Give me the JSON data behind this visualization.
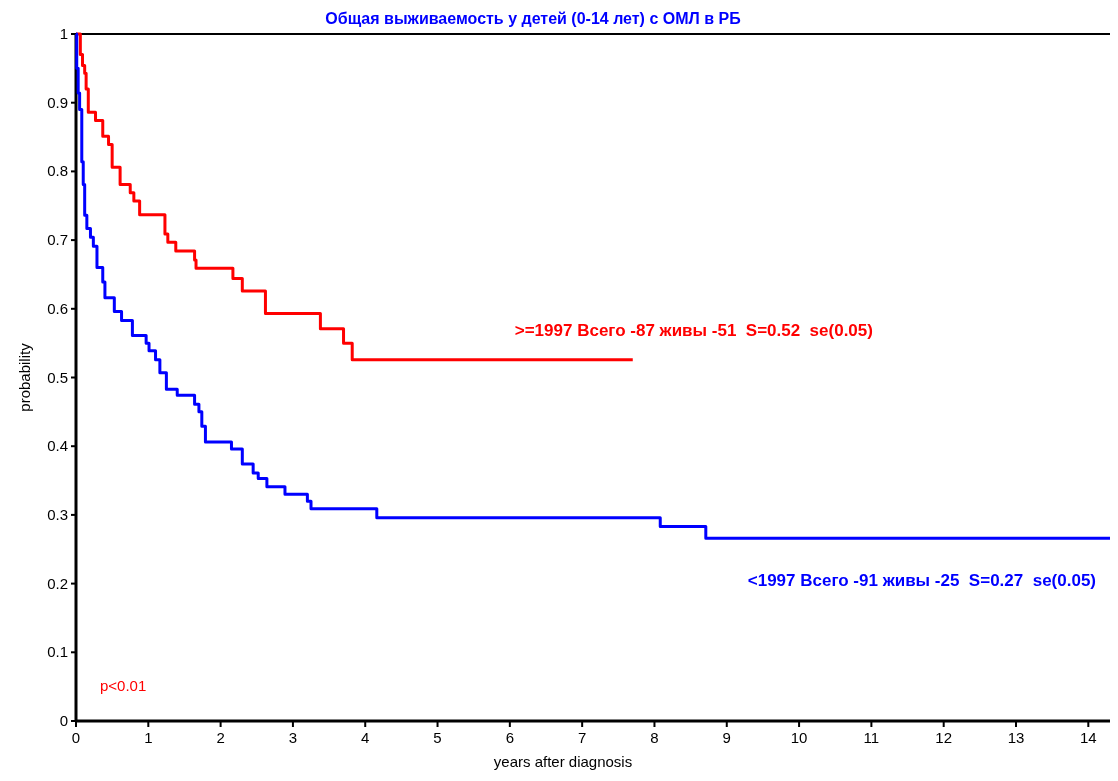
{
  "chart_data": {
    "type": "step",
    "title": "Общая выживаемость у детей (0-14 лет) с ОМЛ в РБ",
    "xlabel": "years after diagnosis",
    "ylabel": "probability",
    "xlim": [
      0,
      14.3
    ],
    "xticks": [
      0,
      1,
      2,
      3,
      4,
      5,
      6,
      7,
      8,
      9,
      10,
      11,
      12,
      13,
      14
    ],
    "ylim": [
      0,
      1
    ],
    "yticks": [
      0,
      0.1,
      0.2,
      0.3,
      0.4,
      0.5,
      0.6,
      0.7,
      0.8,
      0.9,
      1
    ],
    "grid": false,
    "line_style": "solid",
    "marker": "none",
    "annotations": [
      "p<0.01"
    ],
    "series": [
      {
        "name": ">=1997 Всего -87 живы -51  S=0.52  se(0.05)",
        "color": "#ff0000",
        "x": [
          0,
          0.06,
          0.09,
          0.12,
          0.14,
          0.17,
          0.27,
          0.37,
          0.45,
          0.5,
          0.61,
          0.75,
          0.8,
          0.88,
          1.23,
          1.27,
          1.38,
          1.64,
          1.66,
          2.17,
          2.3,
          2.62,
          3.38,
          3.7,
          3.82,
          7.7
        ],
        "values": [
          1,
          0.97,
          0.954,
          0.943,
          0.92,
          0.886,
          0.874,
          0.851,
          0.839,
          0.806,
          0.781,
          0.769,
          0.757,
          0.737,
          0.709,
          0.697,
          0.684,
          0.671,
          0.659,
          0.644,
          0.626,
          0.593,
          0.571,
          0.55,
          0.526,
          0.526
        ]
      },
      {
        "name": "<1997 Всего -91 живы -25  S=0.27  se(0.05)",
        "color": "#0000ff",
        "x": [
          0,
          0.01,
          0.03,
          0.05,
          0.08,
          0.1,
          0.12,
          0.15,
          0.2,
          0.24,
          0.29,
          0.37,
          0.4,
          0.53,
          0.63,
          0.78,
          0.97,
          1.01,
          1.1,
          1.16,
          1.25,
          1.4,
          1.64,
          1.7,
          1.74,
          1.79,
          2.15,
          2.3,
          2.45,
          2.52,
          2.64,
          2.89,
          3.2,
          3.25,
          4.16,
          8.08,
          8.71,
          14.3
        ],
        "values": [
          1,
          0.95,
          0.914,
          0.89,
          0.814,
          0.781,
          0.736,
          0.717,
          0.704,
          0.691,
          0.66,
          0.639,
          0.616,
          0.596,
          0.583,
          0.561,
          0.55,
          0.539,
          0.526,
          0.507,
          0.483,
          0.474,
          0.461,
          0.45,
          0.429,
          0.406,
          0.396,
          0.374,
          0.361,
          0.353,
          0.341,
          0.33,
          0.32,
          0.309,
          0.296,
          0.283,
          0.266,
          0.266
        ]
      }
    ]
  }
}
